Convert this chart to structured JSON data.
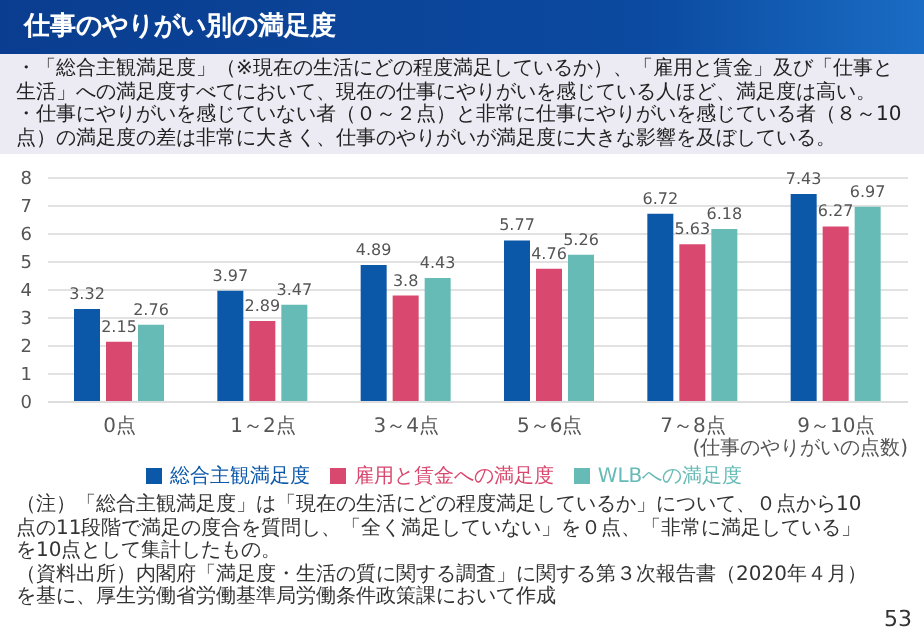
{
  "chart_data": {
    "type": "bar",
    "title": "仕事のやりがい別の満足度",
    "categories": [
      "0点",
      "1～2点",
      "3～4点",
      "5～6点",
      "7～8点",
      "9～10点"
    ],
    "series": [
      {
        "name": "総合主観満足度",
        "color": "#0b57a8",
        "values": [
          3.32,
          3.97,
          4.89,
          5.77,
          6.72,
          7.43
        ]
      },
      {
        "name": "雇用と賃金への満足度",
        "color": "#d9486e",
        "values": [
          2.15,
          2.89,
          3.8,
          4.76,
          5.63,
          6.27
        ]
      },
      {
        "name": "WLBへの満足度",
        "color": "#66bbb6",
        "values": [
          2.76,
          3.47,
          4.43,
          5.26,
          6.18,
          6.97
        ]
      }
    ],
    "xlabel": "(仕事のやりがいの点数)",
    "ylim": [
      0,
      8
    ],
    "yticks": [
      0,
      1,
      2,
      3,
      4,
      5,
      6,
      7,
      8
    ],
    "grid": "y",
    "legend": "bottom",
    "data_labels": true,
    "annotations": [
      "・「総合主観満足度」（※現在の生活にどの程度満足しているか）、「雇用と賃金」及び「仕事と生活」への満足度すべてにおいて、現在の仕事にやりがいを感じている人ほど、満足度は高い。",
      "・仕事にやりがいを感じていない者（０～２点）と非常に仕事にやりがいを感じている者（８～10点）の満足度の差は非常に大きく、仕事のやりがいが満足度に大きな影響を及ぼしている。",
      "（注）「総合主観満足度」は「現在の生活にどの程度満足しているか」について、０点から10点の11段階で満足の度合を質問し、「全く満足していない」を０点、「非常に満足している」を10点として集計したもの。",
      "（資料出所）内閣府「満足度・生活の質に関する調査」に関する第３次報告書（2020年４月）を基に、厚生労働省労働基準局労働条件政策課において作成",
      "53"
    ]
  }
}
